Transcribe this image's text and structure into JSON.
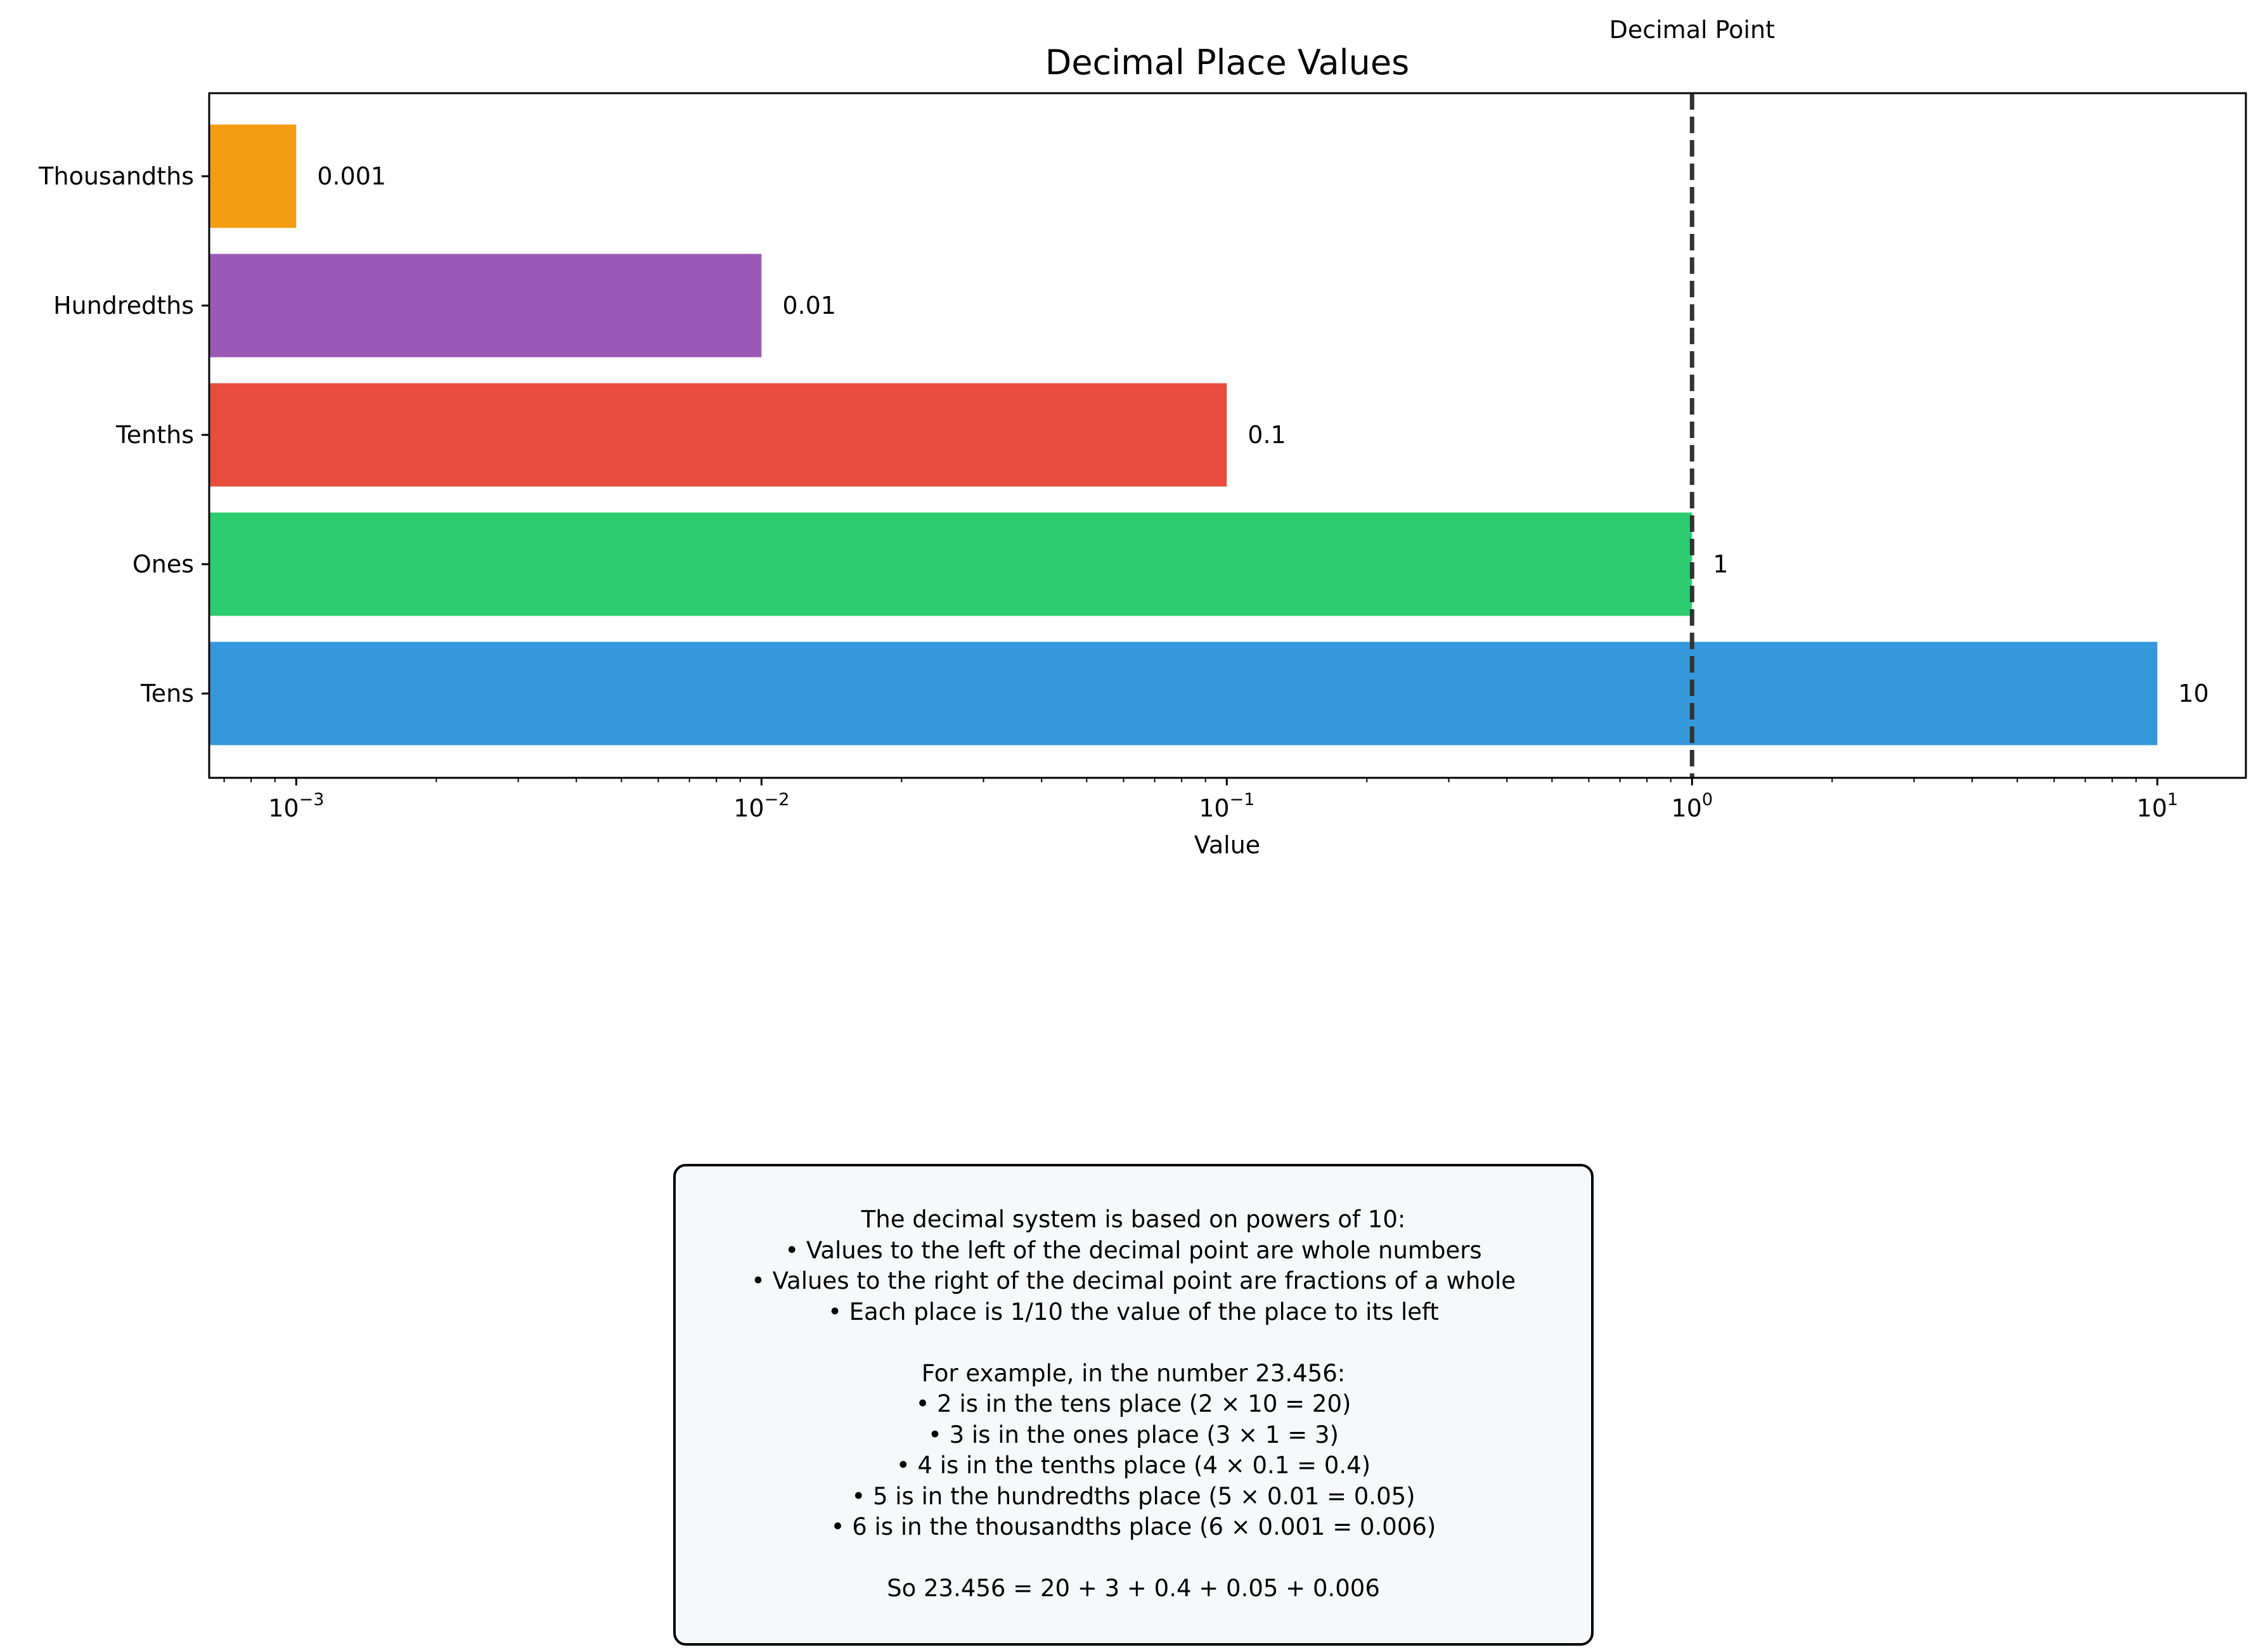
{
  "chart_data": {
    "type": "bar",
    "orientation": "horizontal",
    "title": "Decimal Place Values",
    "xlabel": "Value",
    "ylabel": "",
    "xscale": "log",
    "xlim": [
      0.00065,
      15.5
    ],
    "categories": [
      "Tens",
      "Ones",
      "Tenths",
      "Hundredths",
      "Thousandths"
    ],
    "values": [
      10,
      1,
      0.1,
      0.01,
      0.001
    ],
    "value_labels": [
      "10",
      "1",
      "0.1",
      "0.01",
      "0.001"
    ],
    "colors": [
      "#3498db",
      "#2ecc71",
      "#e74c3c",
      "#9b59b6",
      "#f39c12"
    ],
    "x_ticks": [
      {
        "value": 0.001,
        "base": "10",
        "exp": "−3"
      },
      {
        "value": 0.01,
        "base": "10",
        "exp": "−2"
      },
      {
        "value": 0.1,
        "base": "10",
        "exp": "−1"
      },
      {
        "value": 1,
        "base": "10",
        "exp": "0"
      },
      {
        "value": 10,
        "base": "10",
        "exp": "1"
      }
    ],
    "reference_line": {
      "value": 1,
      "label": "Decimal Point",
      "style": "dashed",
      "color": "#333333"
    },
    "grid": false
  },
  "info_box": {
    "lines": [
      "The decimal system is based on powers of 10:",
      "• Values to the left of the decimal point are whole numbers",
      "• Values to the right of the decimal point are fractions of a whole",
      "• Each place is 1/10 the value of the place to its left",
      "",
      "For example, in the number 23.456:",
      "• 2 is in the tens place (2 × 10 = 20)",
      "• 3 is in the ones place (3 × 1 = 3)",
      "• 4 is in the tenths place (4 × 0.1 = 0.4)",
      "• 5 is in the hundredths place (5 × 0.01 = 0.05)",
      "• 6 is in the thousandths place (6 × 0.001 = 0.006)",
      "",
      "So 23.456 = 20 + 3 + 0.4 + 0.05 + 0.006"
    ]
  }
}
